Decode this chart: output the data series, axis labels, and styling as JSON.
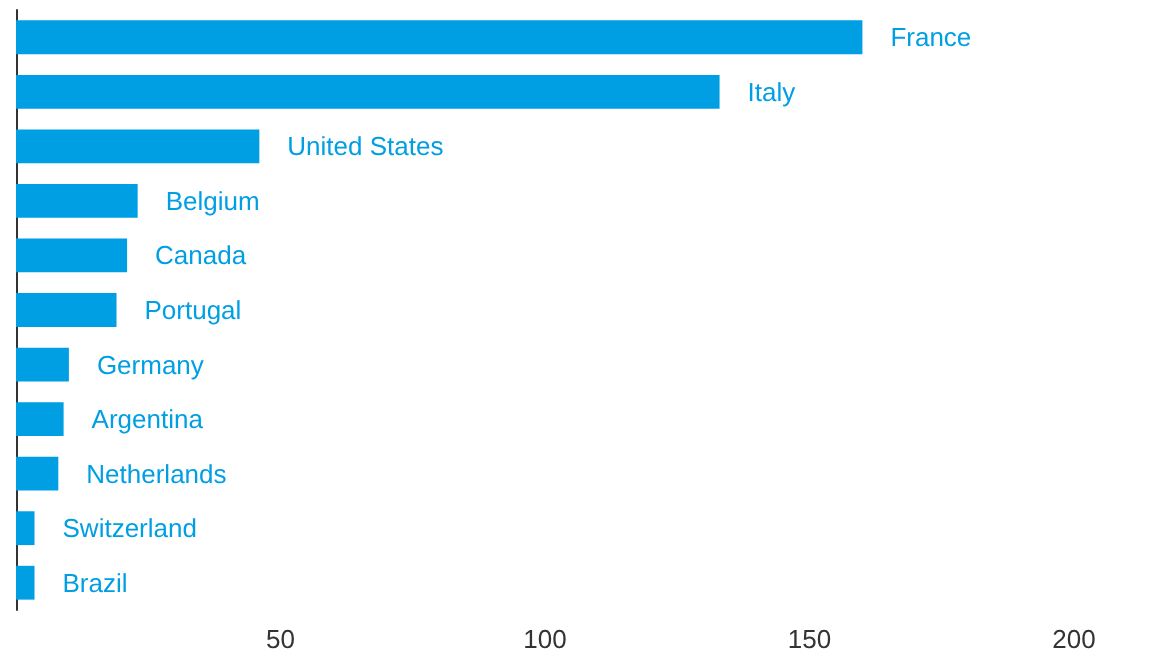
{
  "chart_data": {
    "type": "bar",
    "orientation": "horizontal",
    "categories": [
      "France",
      "Italy",
      "United States",
      "Belgium",
      "Canada",
      "Portugal",
      "Germany",
      "Argentina",
      "Netherlands",
      "Switzerland",
      "Brazil"
    ],
    "values": [
      160,
      133,
      46,
      23,
      21,
      19,
      10,
      9,
      8,
      3.5,
      3.5
    ],
    "color": "#009fe3",
    "xlim": [
      0,
      200
    ],
    "xticks": [
      50,
      100,
      150,
      200
    ],
    "tick_labels": "x",
    "grid": false
  }
}
